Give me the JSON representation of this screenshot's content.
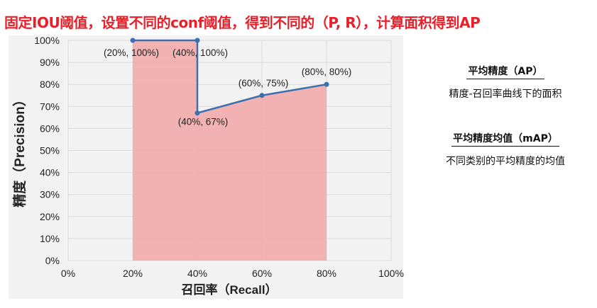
{
  "headline": "固定IOU阈值，设置不同的conf阈值，得到不同的（P, R），计算面积得到AP",
  "definitions": [
    {
      "term": "平均精度（AP）",
      "desc": "精度-召回率曲线下的面积"
    },
    {
      "term": "平均精度均值（mAP）",
      "desc": "不同类别的平均精度的均值"
    }
  ],
  "colors": {
    "headline": "#e8202a",
    "line": "#3a6fb0",
    "fill": "#f2a7a7",
    "plot_bg": "#f2f2f2",
    "grid": "#d9d9d9"
  },
  "chart_data": {
    "type": "area",
    "xlabel": "召回率（Recall）",
    "ylabel": "精度（Precision）",
    "xlim": [
      0,
      100
    ],
    "ylim": [
      0,
      100
    ],
    "x_ticks": [
      "0%",
      "20%",
      "40%",
      "60%",
      "80%",
      "100%"
    ],
    "y_ticks": [
      "0%",
      "10%",
      "20%",
      "30%",
      "40%",
      "50%",
      "60%",
      "70%",
      "80%",
      "90%",
      "100%"
    ],
    "grid": true,
    "points": [
      {
        "x": 20,
        "y": 100,
        "label": "(20%, 100%)"
      },
      {
        "x": 40,
        "y": 100,
        "label": "(40%, 100%)"
      },
      {
        "x": 40,
        "y": 67,
        "label": "(40%, 67%)"
      },
      {
        "x": 60,
        "y": 75,
        "label": "(60%, 75%)"
      },
      {
        "x": 80,
        "y": 80,
        "label": "(80%, 80%)"
      }
    ]
  }
}
